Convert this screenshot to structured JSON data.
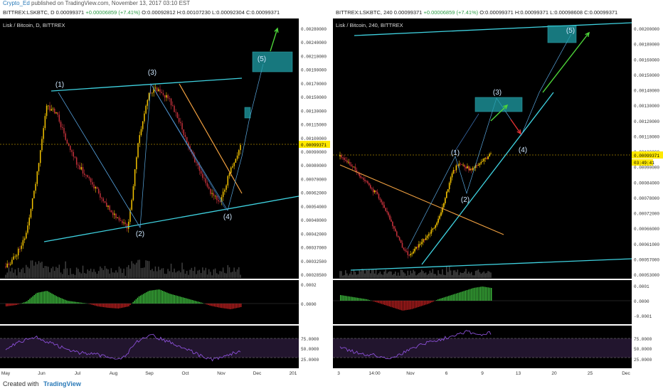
{
  "header": {
    "user": "Crypto_Ed",
    "text": "published on TradingView.com, November 13, 2017 03:10 EST"
  },
  "footer": {
    "created_with": "Created with",
    "brand": "TradingView"
  },
  "colors": {
    "bg": "#000000",
    "up": "#f5c400",
    "down": "#c0303a",
    "channel": "#3fd2e0",
    "trend": "#f0a040",
    "wave": "#5aa8e0",
    "green_arrow": "#4ed63a",
    "red_arrow": "#e03030",
    "target_box": "#1fa0a8",
    "rsi": "#8a4fd6",
    "macd_up": "#3fbf3f",
    "macd_down": "#c02020"
  },
  "chart_data": [
    {
      "type": "candlestick",
      "title": "Lisk / Bitcoin, D, BITTREX",
      "header": {
        "symbol": "BITTREX:LSKBTC, D",
        "last": "0.00099371",
        "change": "+0.00006859 (+7.41%)",
        "open": "O:0.00092812",
        "high": "H:0.00107230",
        "low": "L:0.00092304",
        "close": "C:0.00099371"
      },
      "y_ticks": [
        "0.00280000",
        "0.00240000",
        "0.00210000",
        "0.00190000",
        "0.00170000",
        "0.00150000",
        "0.00130000",
        "0.00115000",
        "0.00100000",
        "0.00090000",
        "0.00080000",
        "0.00070000",
        "0.00062000",
        "0.00054000",
        "0.00048000",
        "0.00042000",
        "0.00037000",
        "0.00032500",
        "0.00028500"
      ],
      "x_ticks": [
        "May",
        "Jun",
        "Jul",
        "Aug",
        "Sep",
        "Oct",
        "Nov",
        "Dec",
        "201"
      ],
      "last_price_label": "0.00099371",
      "wave_labels": [
        "(1)",
        "(2)",
        "(3)",
        "(4)",
        "(5)"
      ],
      "macd_ticks": [
        "0.0002",
        "0.0000"
      ],
      "rsi_ticks": [
        "75.0000",
        "50.0000",
        "25.0000"
      ],
      "approx_path": [
        [
          0.0003,
          0.00032
        ],
        [
          0.00035,
          0.00045
        ],
        [
          0.00165,
          0.0015
        ],
        [
          0.0012,
          0.001
        ],
        [
          0.0009,
          0.00075
        ],
        [
          0.0006,
          0.0005
        ],
        [
          0.00046,
          0.0012
        ],
        [
          0.00175,
          0.0016
        ],
        [
          0.0013,
          0.00095
        ],
        [
          0.0008,
          0.00065
        ],
        [
          0.00056,
          0.00075
        ],
        [
          0.00085,
          0.00099
        ]
      ]
    },
    {
      "type": "candlestick",
      "title": "Lisk / Bitcoin, 240, BITTREX",
      "header": {
        "symbol": "BITTREX:LSKBTC, 240",
        "last": "0.00099371",
        "change": "+0.00006859 (+7.41%)",
        "open": "O:0.00099371",
        "high": "H:0.00099371",
        "low": "L:0.00098608",
        "close": "C:0.00099371"
      },
      "y_ticks": [
        "0.00200000",
        "0.00180000",
        "0.00160000",
        "0.00150000",
        "0.00140000",
        "0.00130000",
        "0.00120000",
        "0.00110000",
        "0.00100000",
        "0.00090000",
        "0.00084000",
        "0.00078000",
        "0.00072000",
        "0.00066000",
        "0.00061000",
        "0.00057000",
        "0.00053000"
      ],
      "x_ticks": [
        "3",
        "14:00",
        "Nov",
        "6",
        "9",
        "13",
        "20",
        "25",
        "Dec"
      ],
      "last_price_label": "0.00099371",
      "countdown_label": "03:49:41",
      "wave_labels": [
        "(1)",
        "(2)",
        "(3)",
        "(4)",
        "(5)"
      ],
      "macd_ticks": [
        "0.0001",
        "0.0000",
        "-0.0001"
      ],
      "rsi_ticks": [
        "75.0000",
        "50.0000",
        "25.0000"
      ],
      "approx_path": [
        [
          0.00095,
          0.0009
        ],
        [
          0.00088,
          0.00082
        ],
        [
          0.0008,
          0.00072
        ],
        [
          0.00065,
          0.00058
        ],
        [
          0.00056,
          0.00062
        ],
        [
          0.00064,
          0.0007
        ],
        [
          0.00075,
          0.00095
        ],
        [
          0.00088,
          0.0009
        ],
        [
          0.00095,
          0.00092
        ],
        [
          0.00096,
          0.00099
        ]
      ]
    }
  ]
}
